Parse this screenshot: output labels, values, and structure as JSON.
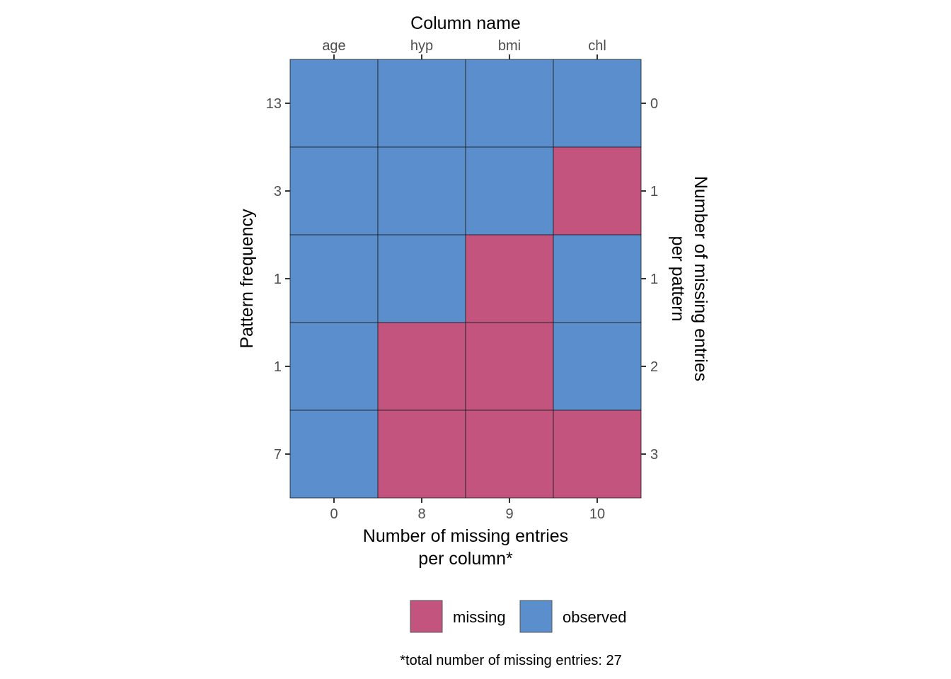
{
  "chart_data": {
    "type": "heatmap",
    "title": "",
    "columns": [
      "age",
      "hyp",
      "bmi",
      "chl"
    ],
    "top_axis_title": "Column name",
    "bottom_axis_title_lines": [
      "Number of missing entries",
      "per column*"
    ],
    "left_axis_title": "Pattern frequency",
    "right_axis_title_lines": [
      "Number of missing entries",
      "per pattern"
    ],
    "missing_per_column": [
      "0",
      "8",
      "9",
      "10"
    ],
    "pattern_frequency": [
      "13",
      "3",
      "1",
      "1",
      "7"
    ],
    "missing_per_pattern": [
      "0",
      "1",
      "1",
      "2",
      "3"
    ],
    "patterns": [
      [
        "observed",
        "observed",
        "observed",
        "observed"
      ],
      [
        "observed",
        "observed",
        "observed",
        "missing"
      ],
      [
        "observed",
        "observed",
        "missing",
        "observed"
      ],
      [
        "observed",
        "missing",
        "missing",
        "observed"
      ],
      [
        "observed",
        "missing",
        "missing",
        "missing"
      ]
    ],
    "legend": [
      {
        "key": "missing",
        "label": "missing",
        "color": "#C2547E"
      },
      {
        "key": "observed",
        "label": "observed",
        "color": "#5B8ECD"
      }
    ],
    "legend_placement": "bottom",
    "caption": "*total number of missing entries: 27",
    "colors": {
      "missing": "#C2547E",
      "observed": "#5B8ECD",
      "grid_line": "#1a1a1a"
    }
  }
}
